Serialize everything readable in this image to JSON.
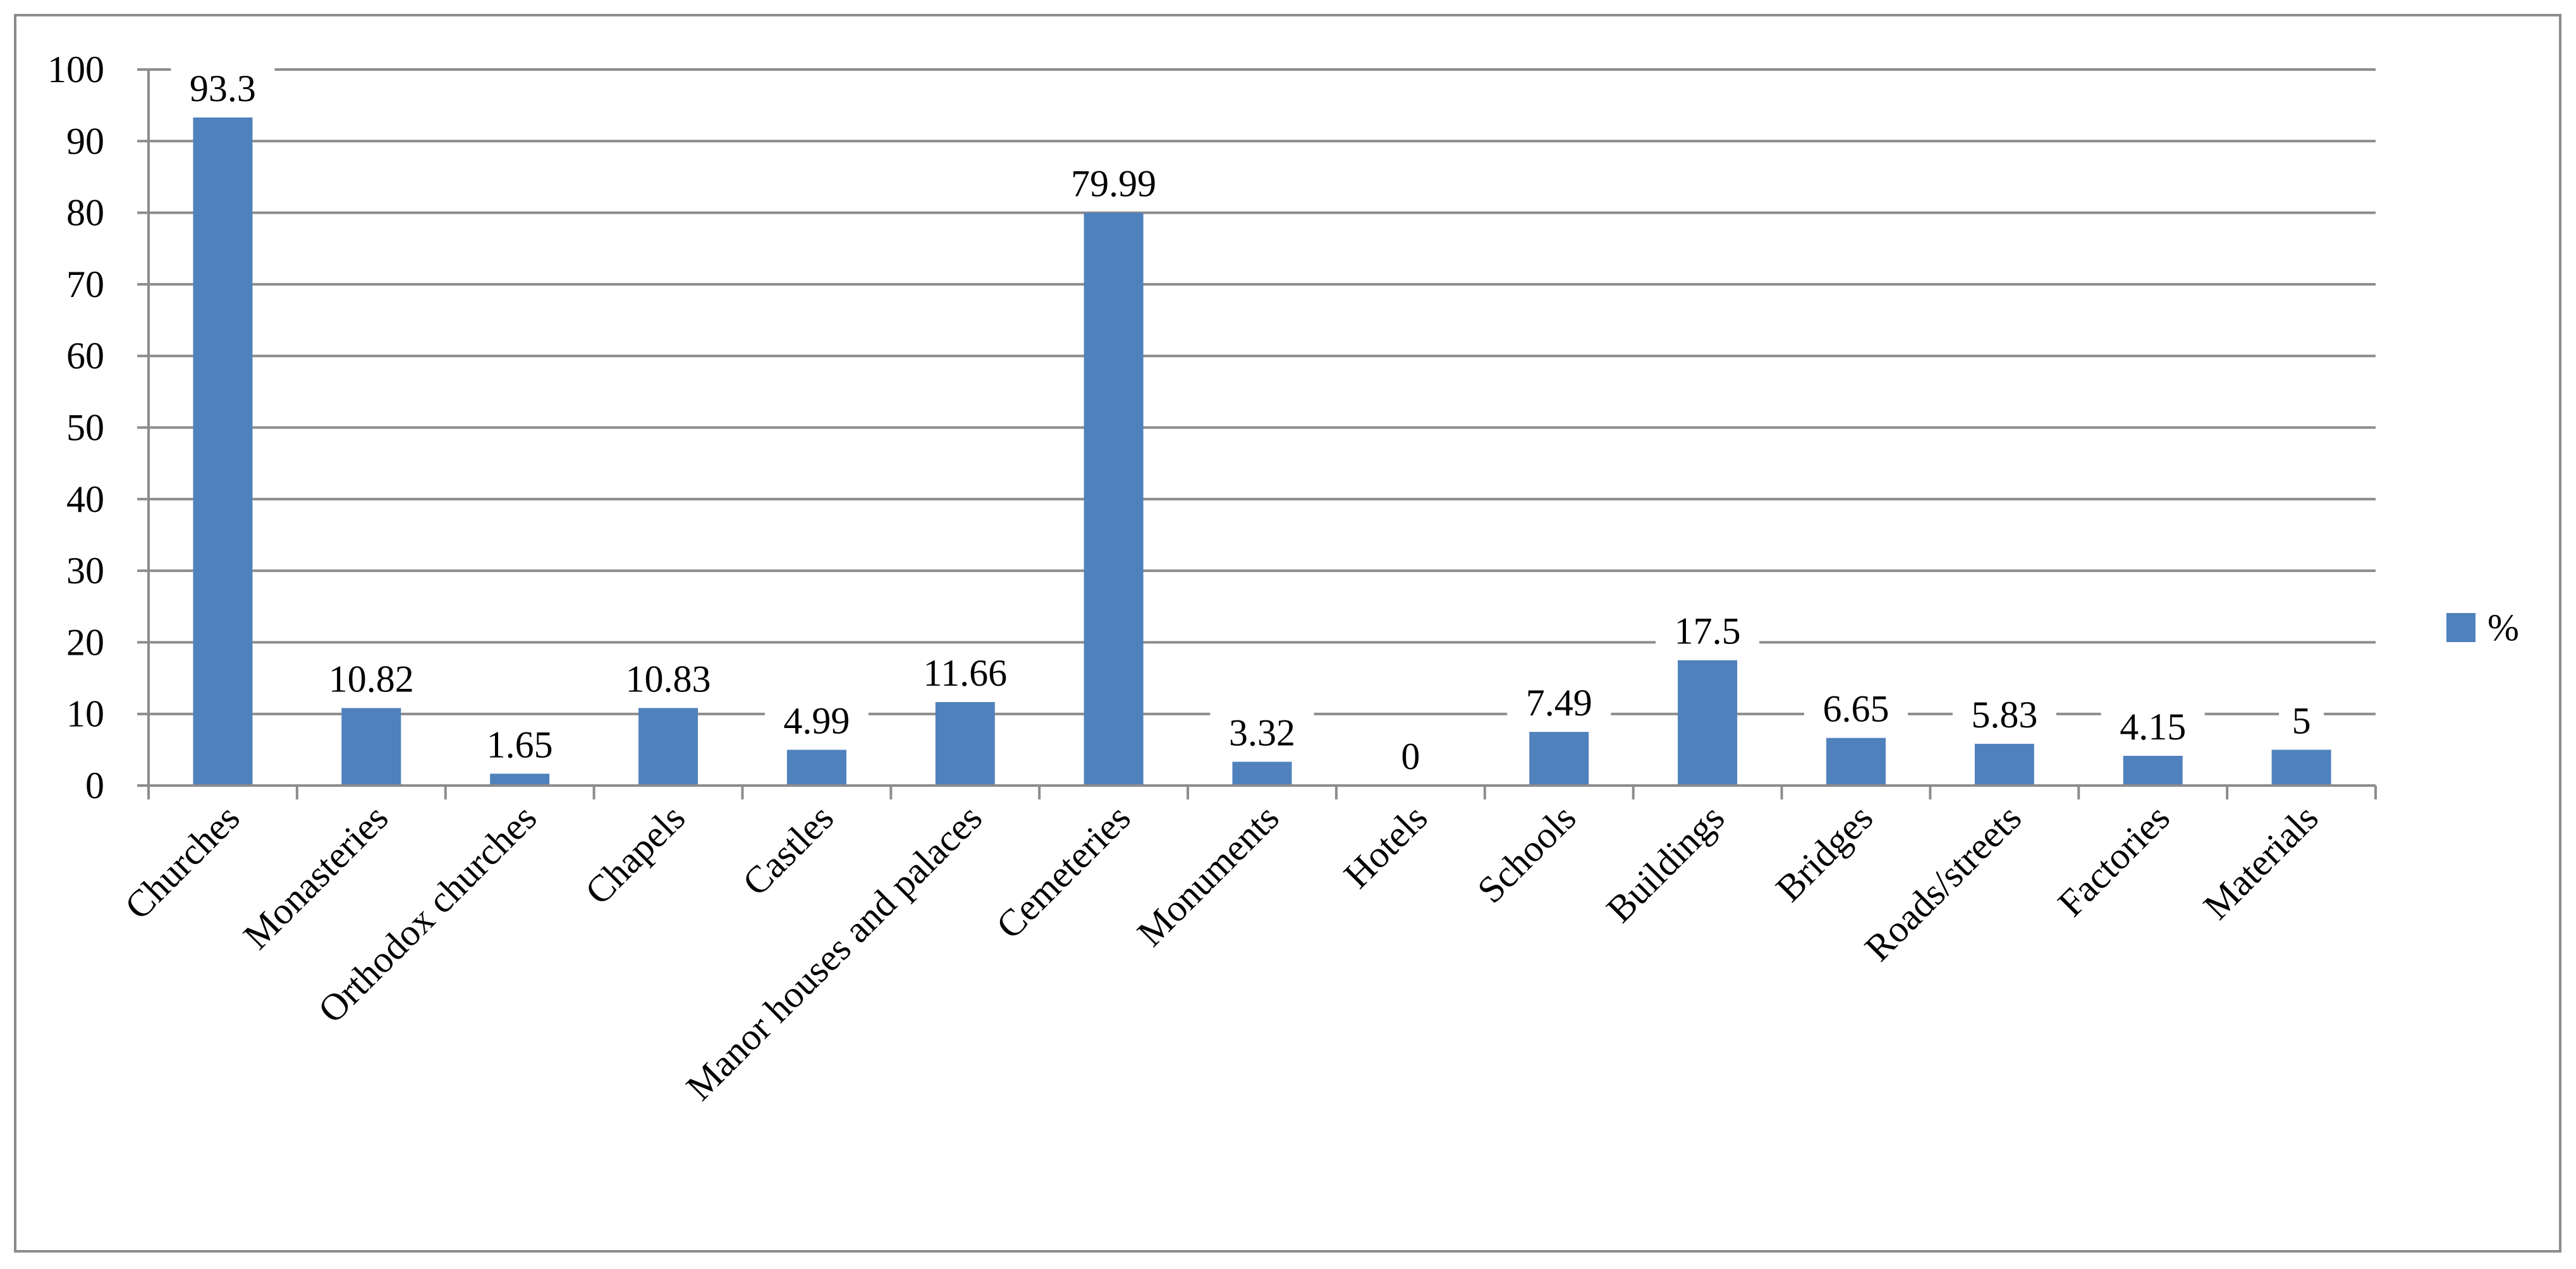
{
  "chart_data": {
    "type": "bar",
    "categories": [
      "Churches",
      "Monasteries",
      "Orthodox churches",
      "Chapels",
      "Castles",
      "Manor houses and palaces",
      "Cemeteries",
      "Monuments",
      "Hotels",
      "Schools",
      "Buildings",
      "Bridges",
      "Roads/streets",
      "Factories",
      "Materials"
    ],
    "series": [
      {
        "name": "%",
        "values": [
          93.3,
          10.82,
          1.65,
          10.83,
          4.99,
          11.66,
          79.99,
          3.32,
          0,
          7.49,
          17.5,
          6.65,
          5.83,
          4.15,
          5
        ]
      }
    ],
    "data_labels": [
      "93.3",
      "10.82",
      "1.65",
      "10.83",
      "4.99",
      "11.66",
      "79.99",
      "3.32",
      "0",
      "7.49",
      "17.5",
      "6.65",
      "5.83",
      "4.15",
      "5"
    ],
    "y_ticks": [
      0,
      10,
      20,
      30,
      40,
      50,
      60,
      70,
      80,
      90,
      100
    ],
    "ylim": [
      0,
      100
    ],
    "grid": true,
    "legend_position": "right",
    "colors": {
      "bar": "#4f81bd",
      "grid": "#8c8c8c",
      "axis": "#8c8c8c",
      "frame": "#8c8c8c"
    }
  }
}
